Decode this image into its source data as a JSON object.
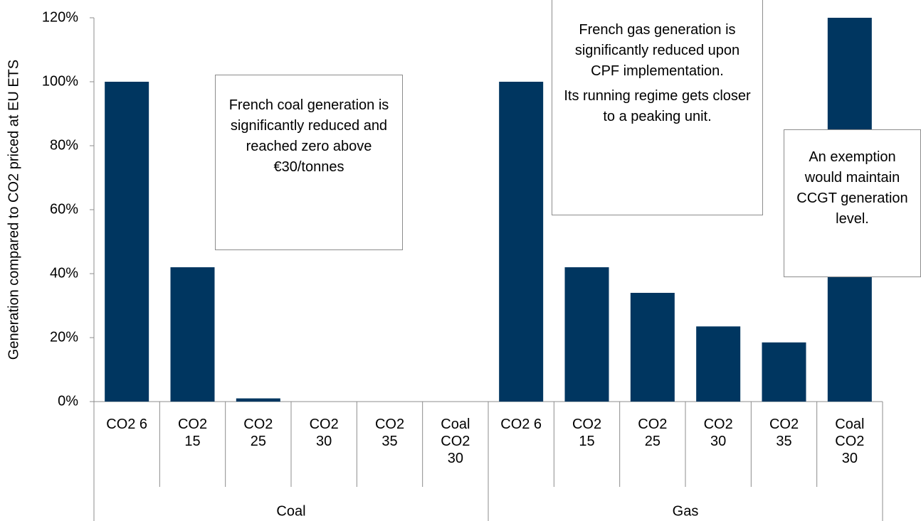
{
  "chart_data": {
    "type": "bar",
    "y_label": "Generation compared to CO2 priced at EU ETS",
    "color": "#003660",
    "groups": [
      {
        "name": "Coal",
        "categories": [
          "CO2 6",
          "CO2 15",
          "CO2 25",
          "CO2 30",
          "CO2 35",
          "Coal CO2 30"
        ],
        "values": [
          100,
          42,
          1,
          0,
          0,
          0
        ]
      },
      {
        "name": "Gas",
        "categories": [
          "CO2 6",
          "CO2 15",
          "CO2 25",
          "CO2 30",
          "CO2 35",
          "Coal CO2 30"
        ],
        "values": [
          100,
          42,
          34,
          23.5,
          18.5,
          120
        ]
      }
    ],
    "ylim": [
      0,
      120
    ],
    "yticks": [
      {
        "value": 0,
        "label": "0%"
      },
      {
        "value": 20,
        "label": "20%"
      },
      {
        "value": 40,
        "label": "40%"
      },
      {
        "value": 60,
        "label": "60%"
      },
      {
        "value": 80,
        "label": "80%"
      },
      {
        "value": 100,
        "label": "100%"
      },
      {
        "value": 120,
        "label": "120%"
      }
    ],
    "annotations": [
      {
        "text": [
          "French coal generation is significantly reduced and reached zero above €30/tonnes"
        ]
      },
      {
        "text": [
          "French gas generation is significantly reduced upon CPF implementation.",
          "Its running regime gets closer to a peaking unit."
        ]
      },
      {
        "text": [
          "An exemption would maintain CCGT generation level."
        ]
      }
    ]
  }
}
